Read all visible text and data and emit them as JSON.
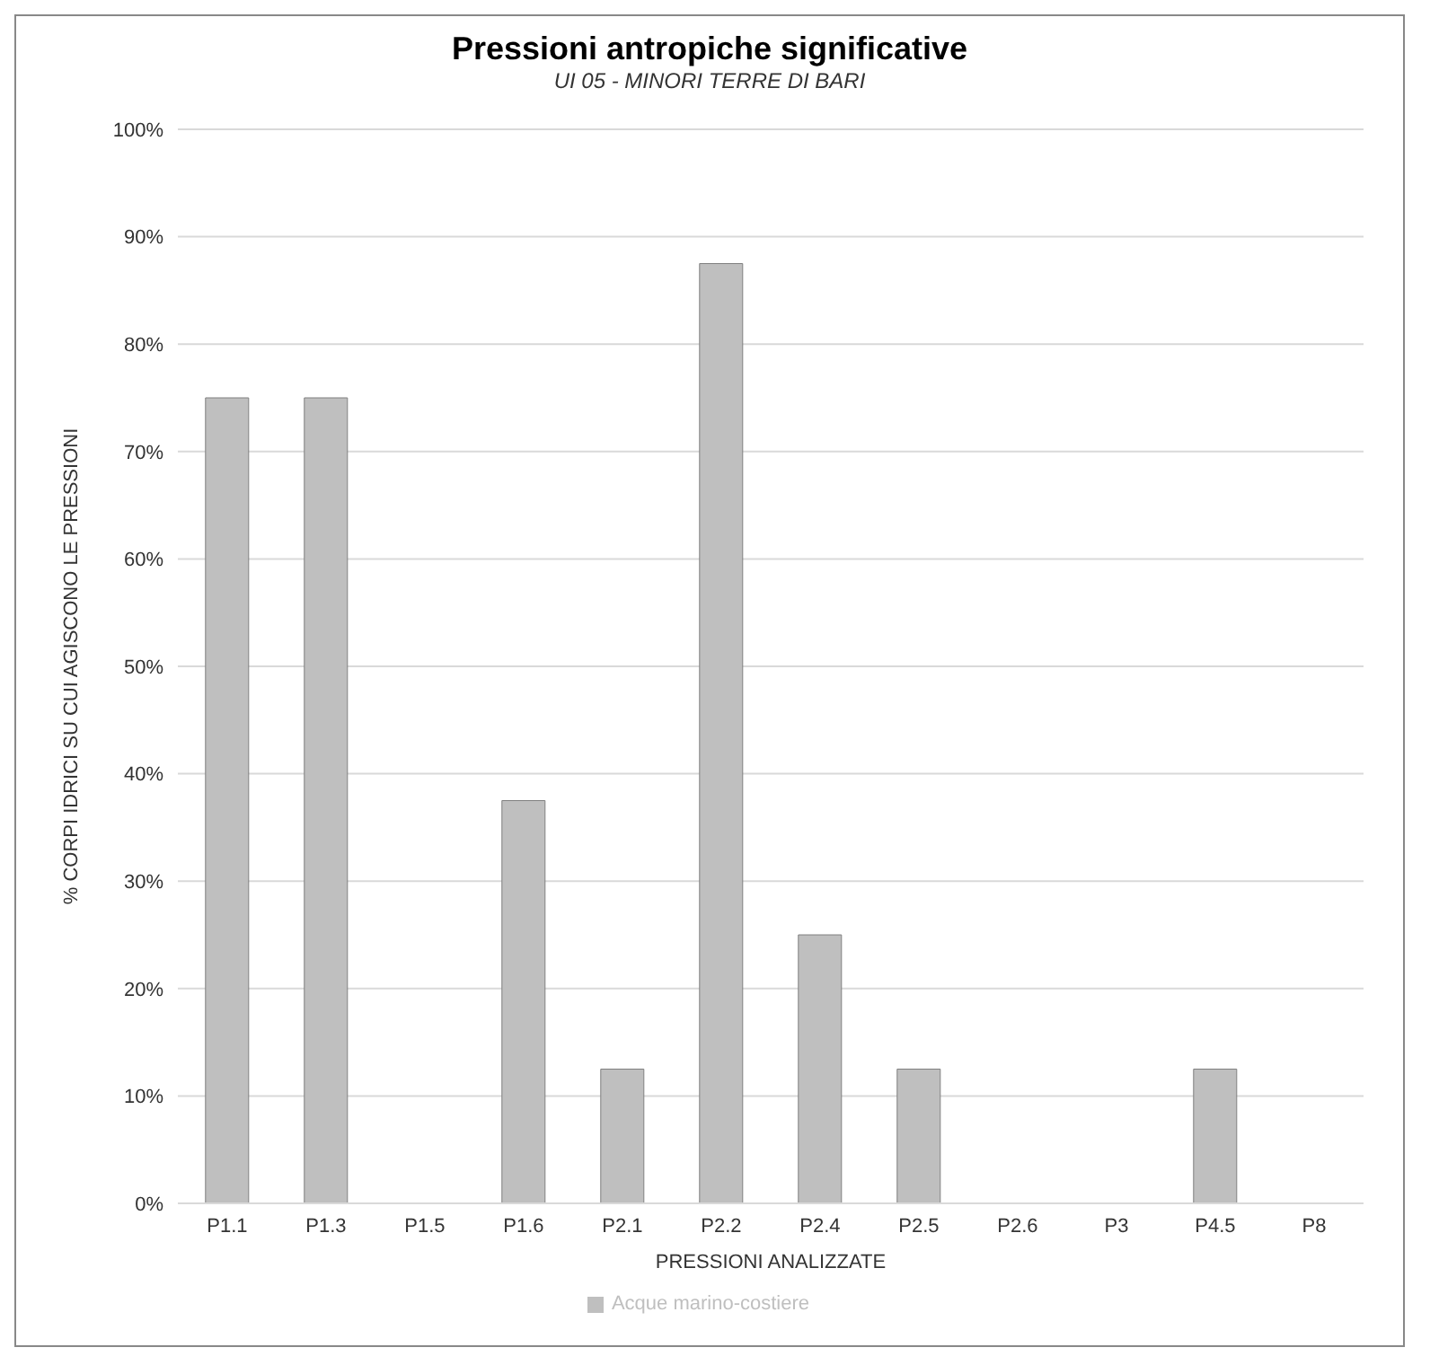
{
  "chart_data": {
    "type": "bar",
    "title": "Pressioni antropiche significative",
    "subtitle": "UI 05 - MINORI TERRE DI BARI",
    "xlabel": "PRESSIONI ANALIZZATE",
    "ylabel": "% CORPI IDRICI SU CUI AGISCONO LE PRESSIONI",
    "categories": [
      "P1.1",
      "P1.3",
      "P1.5",
      "P1.6",
      "P2.1",
      "P2.2",
      "P2.4",
      "P2.5",
      "P2.6",
      "P3",
      "P4.5",
      "P8"
    ],
    "series": [
      {
        "name": "Acque marino-costiere",
        "color": "#bfbfbf",
        "values": [
          75,
          75,
          0,
          37.5,
          12.5,
          87.5,
          25,
          12.5,
          0,
          0,
          12.5,
          0
        ]
      }
    ],
    "ylim": [
      0,
      100
    ],
    "yticks": [
      {
        "value": 0,
        "label": "0%"
      },
      {
        "value": 10,
        "label": "10%"
      },
      {
        "value": 20,
        "label": "20%"
      },
      {
        "value": 30,
        "label": "30%"
      },
      {
        "value": 40,
        "label": "40%"
      },
      {
        "value": 50,
        "label": "50%"
      },
      {
        "value": 60,
        "label": "60%"
      },
      {
        "value": 70,
        "label": "70%"
      },
      {
        "value": 80,
        "label": "80%"
      },
      {
        "value": 90,
        "label": "90%"
      },
      {
        "value": 100,
        "label": "100%"
      }
    ],
    "grid": "y",
    "legend": "bottom"
  }
}
